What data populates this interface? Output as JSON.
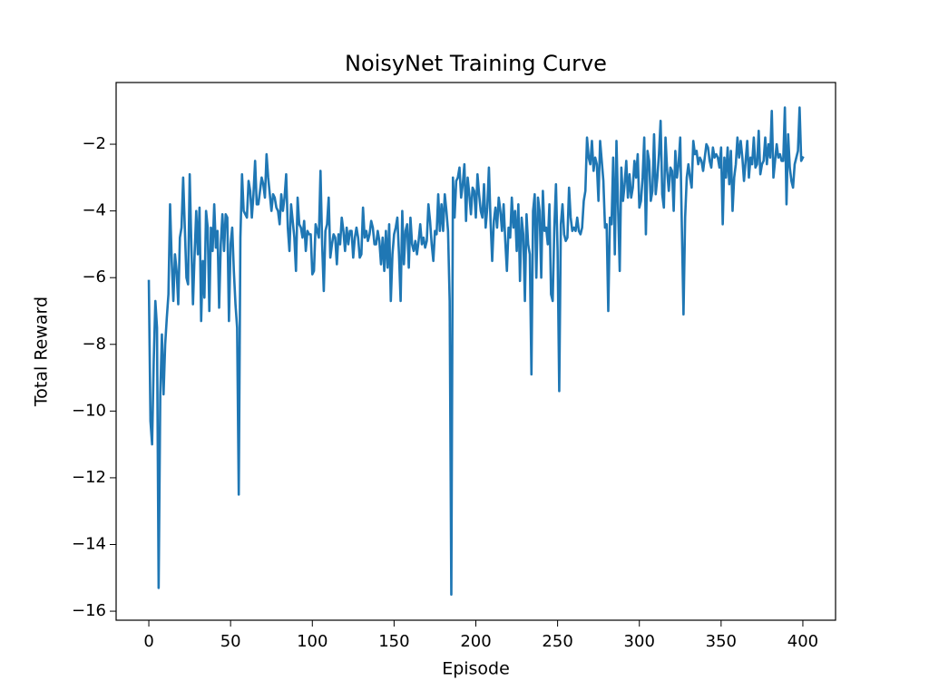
{
  "chart_data": {
    "type": "line",
    "title": "NoisyNet Training Curve",
    "xlabel": "Episode",
    "ylabel": "Total Reward",
    "color": "#1f77b4",
    "x": [
      0,
      1,
      2,
      3,
      4,
      5,
      6,
      7,
      8,
      9,
      10,
      11,
      12,
      13,
      14,
      15,
      16,
      17,
      18,
      19,
      20,
      21,
      22,
      23,
      24,
      25,
      26,
      27,
      28,
      29,
      30,
      31,
      32,
      33,
      34,
      35,
      36,
      37,
      38,
      39,
      40,
      41,
      42,
      43,
      44,
      45,
      46,
      47,
      48,
      49,
      50,
      51,
      52,
      53,
      54,
      55,
      56,
      57,
      58,
      59,
      60,
      61,
      62,
      63,
      64,
      65,
      66,
      67,
      68,
      69,
      70,
      71,
      72,
      73,
      74,
      75,
      76,
      77,
      78,
      79,
      80,
      81,
      82,
      83,
      84,
      85,
      86,
      87,
      88,
      89,
      90,
      91,
      92,
      93,
      94,
      95,
      96,
      97,
      98,
      99,
      100,
      101,
      102,
      103,
      104,
      105,
      106,
      107,
      108,
      109,
      110,
      111,
      112,
      113,
      114,
      115,
      116,
      117,
      118,
      119,
      120,
      121,
      122,
      123,
      124,
      125,
      126,
      127,
      128,
      129,
      130,
      131,
      132,
      133,
      134,
      135,
      136,
      137,
      138,
      139,
      140,
      141,
      142,
      143,
      144,
      145,
      146,
      147,
      148,
      149,
      150,
      151,
      152,
      153,
      154,
      155,
      156,
      157,
      158,
      159,
      160,
      161,
      162,
      163,
      164,
      165,
      166,
      167,
      168,
      169,
      170,
      171,
      172,
      173,
      174,
      175,
      176,
      177,
      178,
      179,
      180,
      181,
      182,
      183,
      184,
      185,
      186,
      187,
      188,
      189,
      190,
      191,
      192,
      193,
      194,
      195,
      196,
      197,
      198,
      199,
      200,
      201,
      202,
      203,
      204,
      205,
      206,
      207,
      208,
      209,
      210,
      211,
      212,
      213,
      214,
      215,
      216,
      217,
      218,
      219,
      220,
      221,
      222,
      223,
      224,
      225,
      226,
      227,
      228,
      229,
      230,
      231,
      232,
      233,
      234,
      235,
      236,
      237,
      238,
      239,
      240,
      241,
      242,
      243,
      244,
      245,
      246,
      247,
      248,
      249,
      250,
      251,
      252,
      253,
      254,
      255,
      256,
      257,
      258,
      259,
      260,
      261,
      262,
      263,
      264,
      265,
      266,
      267,
      268,
      269,
      270,
      271,
      272,
      273,
      274,
      275,
      276,
      277,
      278,
      279,
      280,
      281,
      282,
      283,
      284,
      285,
      286,
      287,
      288,
      289,
      290,
      291,
      292,
      293,
      294,
      295,
      296,
      297,
      298,
      299,
      300,
      301,
      302,
      303,
      304,
      305,
      306,
      307,
      308,
      309,
      310,
      311,
      312,
      313,
      314,
      315,
      316,
      317,
      318,
      319,
      320,
      321,
      322,
      323,
      324,
      325,
      326,
      327,
      328,
      329,
      330,
      331,
      332,
      333,
      334,
      335,
      336,
      337,
      338,
      339,
      340,
      341,
      342,
      343,
      344,
      345,
      346,
      347,
      348,
      349,
      350,
      351,
      352,
      353,
      354,
      355,
      356,
      357,
      358,
      359,
      360,
      361,
      362,
      363,
      364,
      365,
      366,
      367,
      368,
      369,
      370,
      371,
      372,
      373,
      374,
      375,
      376,
      377,
      378,
      379,
      380,
      381,
      382,
      383,
      384,
      385,
      386,
      387,
      388,
      389,
      390,
      391,
      392,
      393,
      394,
      395,
      396,
      397,
      398,
      399,
      400
    ],
    "values": [
      -6.1,
      -10.3,
      -11.0,
      -8.5,
      -6.7,
      -7.5,
      -15.3,
      -9.5,
      -7.7,
      -9.5,
      -8.0,
      -7.2,
      -6.5,
      -3.8,
      -5.5,
      -6.7,
      -5.3,
      -5.8,
      -6.8,
      -4.8,
      -4.5,
      -3.0,
      -4.5,
      -6.0,
      -6.2,
      -2.9,
      -5.0,
      -6.8,
      -5.3,
      -4.0,
      -5.3,
      -3.9,
      -7.3,
      -5.5,
      -6.6,
      -4.0,
      -4.5,
      -7.0,
      -4.5,
      -5.2,
      -3.8,
      -5.1,
      -4.6,
      -6.9,
      -5.0,
      -4.1,
      -5.2,
      -4.1,
      -4.2,
      -7.3,
      -5.0,
      -4.5,
      -5.8,
      -6.8,
      -7.5,
      -12.5,
      -4.8,
      -2.9,
      -4.0,
      -4.1,
      -4.2,
      -3.1,
      -3.4,
      -4.2,
      -3.5,
      -2.5,
      -3.8,
      -3.8,
      -3.4,
      -3.0,
      -3.2,
      -3.6,
      -2.3,
      -3.0,
      -3.5,
      -4.0,
      -3.5,
      -3.6,
      -3.9,
      -4.0,
      -4.4,
      -3.5,
      -4.0,
      -3.6,
      -2.9,
      -4.5,
      -5.2,
      -3.8,
      -4.3,
      -4.8,
      -5.8,
      -3.6,
      -4.4,
      -4.5,
      -4.8,
      -4.3,
      -5.2,
      -4.6,
      -4.7,
      -4.7,
      -5.9,
      -5.8,
      -4.4,
      -4.6,
      -4.8,
      -2.8,
      -5.0,
      -6.4,
      -4.6,
      -4.4,
      -3.6,
      -5.4,
      -5.0,
      -4.7,
      -4.8,
      -5.6,
      -4.7,
      -5.0,
      -4.2,
      -4.6,
      -5.2,
      -4.5,
      -5.0,
      -4.6,
      -4.6,
      -5.4,
      -4.8,
      -4.5,
      -4.8,
      -5.4,
      -5.3,
      -3.9,
      -4.8,
      -4.6,
      -4.9,
      -4.7,
      -4.3,
      -4.5,
      -5.0,
      -5.0,
      -4.6,
      -4.9,
      -5.6,
      -4.8,
      -5.8,
      -4.6,
      -5.7,
      -4.4,
      -6.7,
      -5.3,
      -4.7,
      -4.5,
      -4.2,
      -5.3,
      -6.7,
      -4.0,
      -5.6,
      -4.6,
      -4.4,
      -5.7,
      -4.2,
      -5.0,
      -5.2,
      -4.9,
      -5.3,
      -4.9,
      -4.4,
      -5.0,
      -4.8,
      -5.1,
      -4.9,
      -3.8,
      -4.3,
      -5.0,
      -5.5,
      -4.6,
      -4.7,
      -3.5,
      -4.6,
      -3.8,
      -4.6,
      -3.5,
      -4.0,
      -4.6,
      -6.7,
      -15.5,
      -3.0,
      -4.2,
      -3.1,
      -3.0,
      -2.7,
      -3.6,
      -3.2,
      -2.6,
      -4.3,
      -3.0,
      -3.5,
      -4.1,
      -3.3,
      -3.4,
      -4.2,
      -2.9,
      -3.5,
      -4.0,
      -4.2,
      -3.2,
      -4.5,
      -3.9,
      -2.7,
      -4.3,
      -5.5,
      -4.3,
      -3.9,
      -4.5,
      -3.6,
      -4.0,
      -4.6,
      -3.8,
      -4.9,
      -5.8,
      -4.5,
      -4.8,
      -3.6,
      -4.5,
      -4.0,
      -5.2,
      -3.8,
      -6.1,
      -4.2,
      -4.7,
      -6.7,
      -4.1,
      -5.0,
      -5.3,
      -8.9,
      -4.0,
      -3.5,
      -6.0,
      -3.6,
      -4.0,
      -6.0,
      -3.4,
      -4.6,
      -4.5,
      -5.0,
      -3.8,
      -6.5,
      -6.7,
      -4.5,
      -3.2,
      -5.2,
      -9.4,
      -4.4,
      -3.8,
      -4.7,
      -4.9,
      -4.8,
      -3.3,
      -4.2,
      -4.6,
      -4.5,
      -4.6,
      -4.2,
      -4.6,
      -4.7,
      -4.5,
      -3.7,
      -3.4,
      -1.8,
      -2.4,
      -2.6,
      -1.9,
      -2.8,
      -2.4,
      -2.6,
      -3.7,
      -1.9,
      -2.5,
      -3.1,
      -4.5,
      -4.4,
      -7.0,
      -4.2,
      -4.4,
      -2.4,
      -5.3,
      -1.9,
      -3.9,
      -5.8,
      -2.7,
      -3.7,
      -3.2,
      -2.5,
      -3.6,
      -2.9,
      -3.6,
      -3.3,
      -2.5,
      -3.0,
      -2.3,
      -3.9,
      -3.7,
      -3.0,
      -1.8,
      -4.7,
      -2.2,
      -2.5,
      -3.7,
      -3.4,
      -1.7,
      -3.5,
      -3.0,
      -2.3,
      -1.3,
      -3.5,
      -3.9,
      -1.8,
      -2.8,
      -3.4,
      -2.7,
      -2.8,
      -4.0,
      -2.2,
      -3.0,
      -2.6,
      -1.8,
      -4.5,
      -7.1,
      -4.2,
      -3.0,
      -2.6,
      -3.0,
      -3.3,
      -1.9,
      -2.3,
      -2.2,
      -2.6,
      -2.4,
      -2.5,
      -2.8,
      -2.4,
      -2.0,
      -2.1,
      -2.5,
      -2.7,
      -2.1,
      -2.4,
      -2.3,
      -2.4,
      -2.7,
      -2.1,
      -4.4,
      -2.4,
      -3.0,
      -2.1,
      -3.2,
      -2.2,
      -4.0,
      -3.0,
      -2.6,
      -1.8,
      -2.4,
      -1.9,
      -2.4,
      -3.1,
      -2.5,
      -1.9,
      -3.0,
      -2.4,
      -2.6,
      -1.8,
      -2.7,
      -2.6,
      -1.6,
      -2.9,
      -2.6,
      -2.5,
      -1.8,
      -2.6,
      -2.0,
      -2.4,
      -1.0,
      -3.0,
      -2.5,
      -2.0,
      -2.4,
      -2.3,
      -2.5,
      -2.5,
      -0.9,
      -3.8,
      -1.7,
      -2.7,
      -3.1,
      -3.3,
      -2.6,
      -2.4,
      -2.2,
      -0.9,
      -2.5,
      -2.4
    ],
    "xlim": [
      -20,
      420
    ],
    "xticks": [
      0,
      50,
      100,
      150,
      200,
      250,
      300,
      350,
      400
    ],
    "ylim": [
      -16.27,
      -0.15
    ],
    "yticks": [
      {
        "value": -16,
        "label": "−16"
      },
      {
        "value": -14,
        "label": "−14"
      },
      {
        "value": -12,
        "label": "−12"
      },
      {
        "value": -10,
        "label": "−10"
      },
      {
        "value": -8,
        "label": "−8"
      },
      {
        "value": -6,
        "label": "−6"
      },
      {
        "value": -4,
        "label": "−4"
      },
      {
        "value": -2,
        "label": "−2"
      }
    ]
  }
}
